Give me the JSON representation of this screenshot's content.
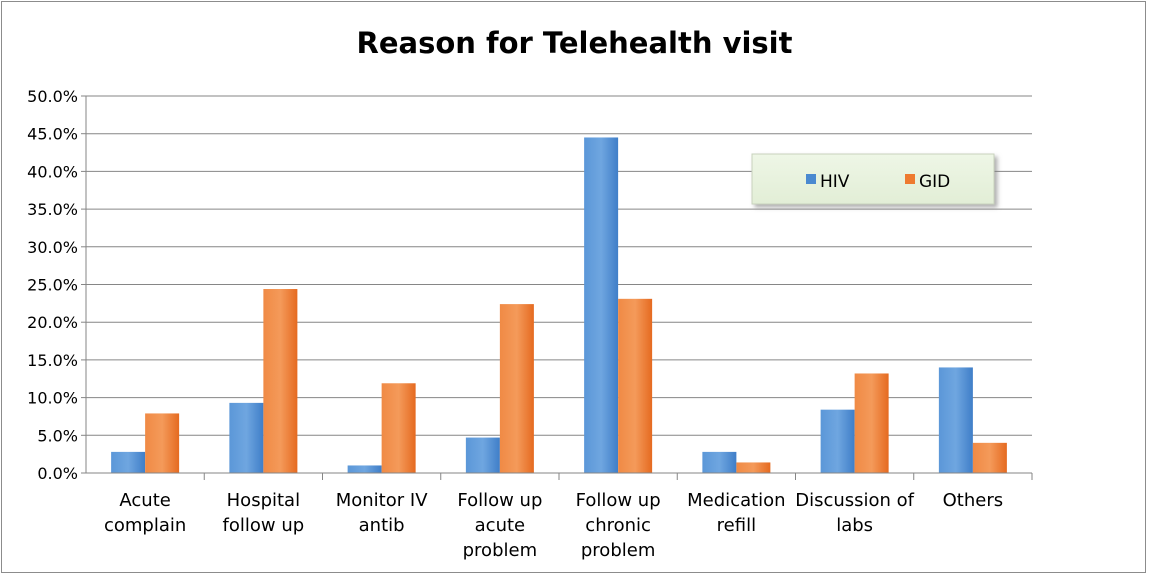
{
  "chart_data": {
    "type": "bar",
    "title": "Reason for Telehealth visit",
    "xlabel": "",
    "ylabel": "",
    "ylim": [
      0,
      50
    ],
    "ytick_labels": [
      "0.0%",
      "5.0%",
      "10.0%",
      "15.0%",
      "20.0%",
      "25.0%",
      "30.0%",
      "35.0%",
      "40.0%",
      "45.0%",
      "50.0%"
    ],
    "grid": true,
    "legend_position": "top-right",
    "categories": [
      [
        "Acute",
        "complain"
      ],
      [
        "Hospital",
        "follow up"
      ],
      [
        "Monitor IV",
        "antib"
      ],
      [
        "Follow up",
        "acute",
        "problem"
      ],
      [
        "Follow up",
        "chronic",
        "problem"
      ],
      [
        "Medication",
        "refill"
      ],
      [
        "Discussion of",
        "labs"
      ],
      [
        "Others"
      ]
    ],
    "series": [
      {
        "name": "HIV",
        "color": "#4a89d0",
        "values": [
          2.8,
          9.3,
          1.0,
          4.7,
          44.5,
          2.8,
          8.4,
          14.0
        ]
      },
      {
        "name": "GID",
        "color": "#ee7a30",
        "values": [
          7.9,
          24.4,
          11.9,
          22.4,
          23.1,
          1.4,
          13.2,
          4.0
        ]
      }
    ]
  }
}
